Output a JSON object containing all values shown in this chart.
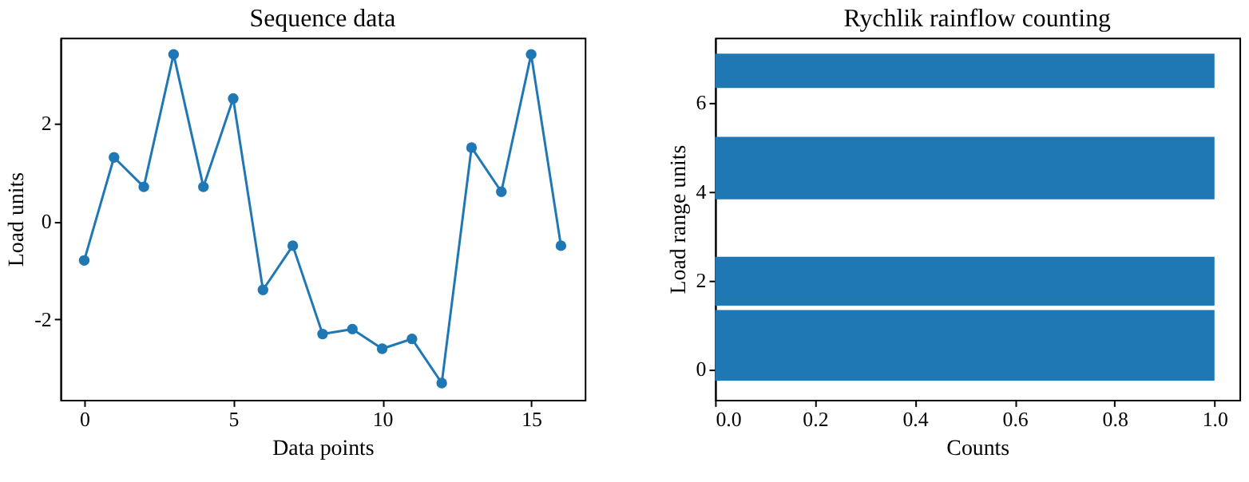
{
  "chart_data": [
    {
      "type": "line",
      "title": "Sequence data",
      "xlabel": "Data points",
      "ylabel": "Load units",
      "marker": "circle",
      "line_style": "solid",
      "grid": false,
      "x": [
        0,
        1,
        2,
        3,
        4,
        5,
        6,
        7,
        8,
        9,
        10,
        11,
        12,
        13,
        14,
        15,
        16
      ],
      "series": [
        {
          "color": "#1f77b4",
          "values": [
            -0.8,
            1.3,
            0.7,
            3.4,
            0.7,
            2.5,
            -1.4,
            -0.5,
            -2.3,
            -2.2,
            -2.6,
            -2.4,
            -3.3,
            1.5,
            0.6,
            3.4,
            -0.5
          ]
        }
      ],
      "xlim": [
        -0.8,
        16.8
      ],
      "xticks": [
        0,
        5,
        10,
        15
      ],
      "ylim": [
        -3.64,
        3.74
      ],
      "yticks": [
        -2,
        0,
        2
      ]
    },
    {
      "type": "histogram",
      "orientation": "horizontal",
      "title": "Rychlik rainflow counting",
      "xlabel": "Counts",
      "ylabel": "Load range units",
      "grid": false,
      "bins": [
        -0.26,
        1.33,
        1.43,
        2.53,
        3.82,
        5.23,
        6.33,
        7.1
      ],
      "series": [
        {
          "color": "#1f77b4",
          "values": [
            1,
            0,
            1,
            0,
            1,
            0,
            1
          ]
        }
      ],
      "xlim": [
        0,
        1.05
      ],
      "xticks": [
        {
          "value": 0,
          "label": "0.0"
        },
        {
          "value": 0.2,
          "label": "0.2"
        },
        {
          "value": 0.4,
          "label": "0.4"
        },
        {
          "value": 0.6,
          "label": "0.6"
        },
        {
          "value": 0.8,
          "label": "0.8"
        },
        {
          "value": 1,
          "label": "1.0"
        }
      ],
      "ylim": [
        -0.69,
        7.46
      ],
      "yticks": [
        0,
        2,
        4,
        6
      ]
    }
  ]
}
